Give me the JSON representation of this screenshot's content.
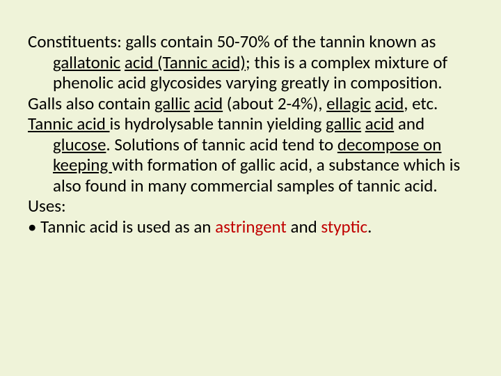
{
  "slide": {
    "background_color": "#eff3d9",
    "text_color": "#000000",
    "highlight_color": "#c00000",
    "font_family": "Calibri",
    "font_size_pt": 25,
    "line_height": 1.18
  },
  "content": {
    "p1_lead": "Constituents: galls contain 50-70% of the tannin known as ",
    "p1_u1": "gallatonic",
    "p1_mid1": " ",
    "p1_u2": "acid (Tannic acid)",
    "p1_tail": "; this is a complex mixture of phenolic acid glycosides varying greatly in composition.",
    "p2_lead": "Galls also contain ",
    "p2_u1": "gallic",
    "p2_mid1": " ",
    "p2_u2": "acid",
    "p2_mid2": " (about 2-4%), ",
    "p2_u3": "ellagic",
    "p2_mid3": " ",
    "p2_u4": "acid",
    "p2_tail": ", etc.",
    "p3_u1": "Tannic acid ",
    "p3_mid1": "is hydrolysable tannin yielding ",
    "p3_u2": "gallic",
    "p3_mid2": " ",
    "p3_u3": "acid",
    "p3_mid3": " and ",
    "p3_u4": "glucose",
    "p3_mid4": ". Solutions of tannic acid tend to ",
    "p3_u5": "decompose on keeping ",
    "p3_tail": "with formation of gallic acid, a substance which is also found in many commercial samples of tannic acid.",
    "p4": "Uses:",
    "p5_lead": "Tannic acid is used as an ",
    "p5_r1": "astringent",
    "p5_mid": " and ",
    "p5_r2": "styptic",
    "p5_tail": "."
  }
}
